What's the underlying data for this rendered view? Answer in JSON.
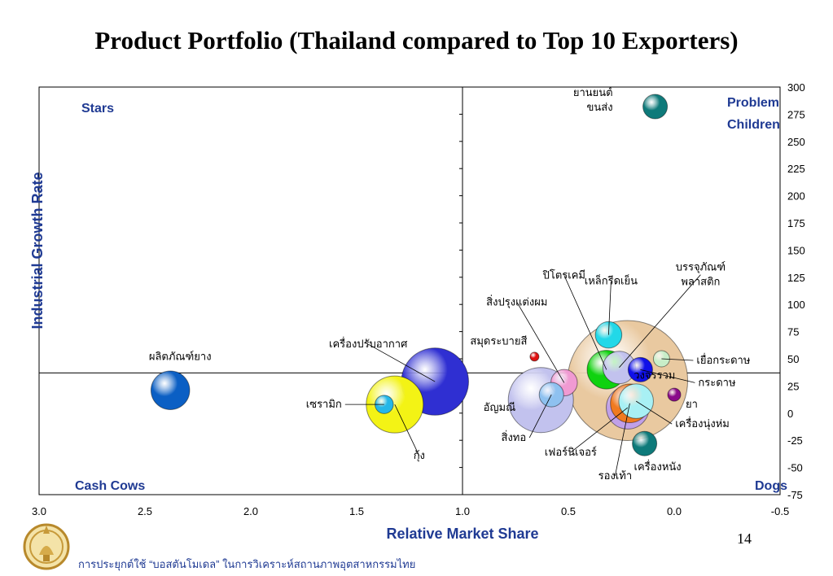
{
  "slide": {
    "title": "Product Portfolio (Thailand compared to Top 10 Exporters)",
    "page_number": "14",
    "footer": "การประยุกต์ใช้ “บอสตันโมเดล” ในการวิเคราะห์สถานภาพอุตสาหกรรมไทย",
    "logo_icon": "royal-seal-icon"
  },
  "quadrants": {
    "top_left": "Stars",
    "top_right_line1": "Problem",
    "top_right_line2": "Children",
    "bottom_left": "Cash Cows",
    "bottom_right": "Dogs"
  },
  "chart_data": {
    "type": "bubble",
    "title": "",
    "xlabel": "Relative Market Share",
    "ylabel": "Industrial Growth Rate",
    "x_range": [
      3.0,
      -0.5
    ],
    "x_reversed": true,
    "y_range": [
      -75,
      300
    ],
    "x_ticks": [
      "3.0",
      "2.5",
      "2.0",
      "1.5",
      "1.0",
      "0.5",
      "0.0",
      "-0.5"
    ],
    "y_ticks": [
      "300",
      "275",
      "250",
      "225",
      "200",
      "175",
      "150",
      "125",
      "100",
      "75",
      "50",
      "25",
      "0",
      "-25",
      "-50",
      "-75"
    ],
    "x_divider": 1.0,
    "y_divider": 37,
    "grid": false,
    "points": [
      {
        "name": "ยานยนต์ ขนส่ง",
        "x": 0.09,
        "y": 282,
        "size": 0.6,
        "color": "#0e7a7a"
      },
      {
        "name": "ผลิตภัณฑ์ยาง",
        "x": 2.38,
        "y": 21,
        "size": 0.95,
        "color": "#0b5fc4"
      },
      {
        "name": "เครื่องปรับอากาศ",
        "x": 1.13,
        "y": 29,
        "size": 1.65,
        "color": "#2f2fd2"
      },
      {
        "name": "กุ้ง",
        "x": 1.32,
        "y": 8,
        "size": 1.4,
        "color": "#f3f315"
      },
      {
        "name": "เซรามิก",
        "x": 1.37,
        "y": 8,
        "size": 0.45,
        "color": "#25b7e8"
      },
      {
        "name": "สมุดระบายสี",
        "x": 0.66,
        "y": 52,
        "size": 0.22,
        "color": "#e01010"
      },
      {
        "name": "อัญมณี",
        "x": 0.63,
        "y": 12,
        "size": 1.6,
        "color": "#c2c2ee"
      },
      {
        "name": "สิ่งปรุงแต่งผม",
        "x": 0.52,
        "y": 28,
        "size": 0.65,
        "color": "#f09ad2"
      },
      {
        "name": "สิ่งทอ",
        "x": 0.58,
        "y": 17,
        "size": 0.6,
        "color": "#8ec1f0"
      },
      {
        "name": "วงจรรวม",
        "x": 0.22,
        "y": 30,
        "size": 2.95,
        "color": "#e9c9a0"
      },
      {
        "name": "ปิโตรเคมี",
        "x": 0.32,
        "y": 40,
        "size": 0.95,
        "color": "#0fd20f"
      },
      {
        "name": "เหล็กรีดเย็น",
        "x": 0.31,
        "y": 72,
        "size": 0.65,
        "color": "#22d8e8"
      },
      {
        "name": "บรรจุภัณฑ์ พลาสติก",
        "x": 0.26,
        "y": 42,
        "size": 0.8,
        "color": "#c2c2ee"
      },
      {
        "name": "เยื่อกระดาษ",
        "x": 0.06,
        "y": 50,
        "size": 0.4,
        "color": "#c8eec8"
      },
      {
        "name": "กระดาษ",
        "x": 0.16,
        "y": 40,
        "size": 0.6,
        "color": "#1010e8"
      },
      {
        "name": "ยา",
        "x": 0.0,
        "y": 17,
        "size": 0.32,
        "color": "#8a0a8a"
      },
      {
        "name": "เฟอร์นิเจอร์",
        "x": 0.22,
        "y": 5,
        "size": 1.05,
        "color": "#c0a0e8"
      },
      {
        "name": "รองเท้า",
        "x": 0.21,
        "y": 9,
        "size": 0.95,
        "color": "#f07a20"
      },
      {
        "name": "เครื่องนุ่งห่ม",
        "x": 0.18,
        "y": 11,
        "size": 0.85,
        "color": "#a8f0f4"
      },
      {
        "name": "เครื่องหนัง",
        "x": 0.14,
        "y": -28,
        "size": 0.6,
        "color": "#0e7a7a"
      }
    ]
  }
}
